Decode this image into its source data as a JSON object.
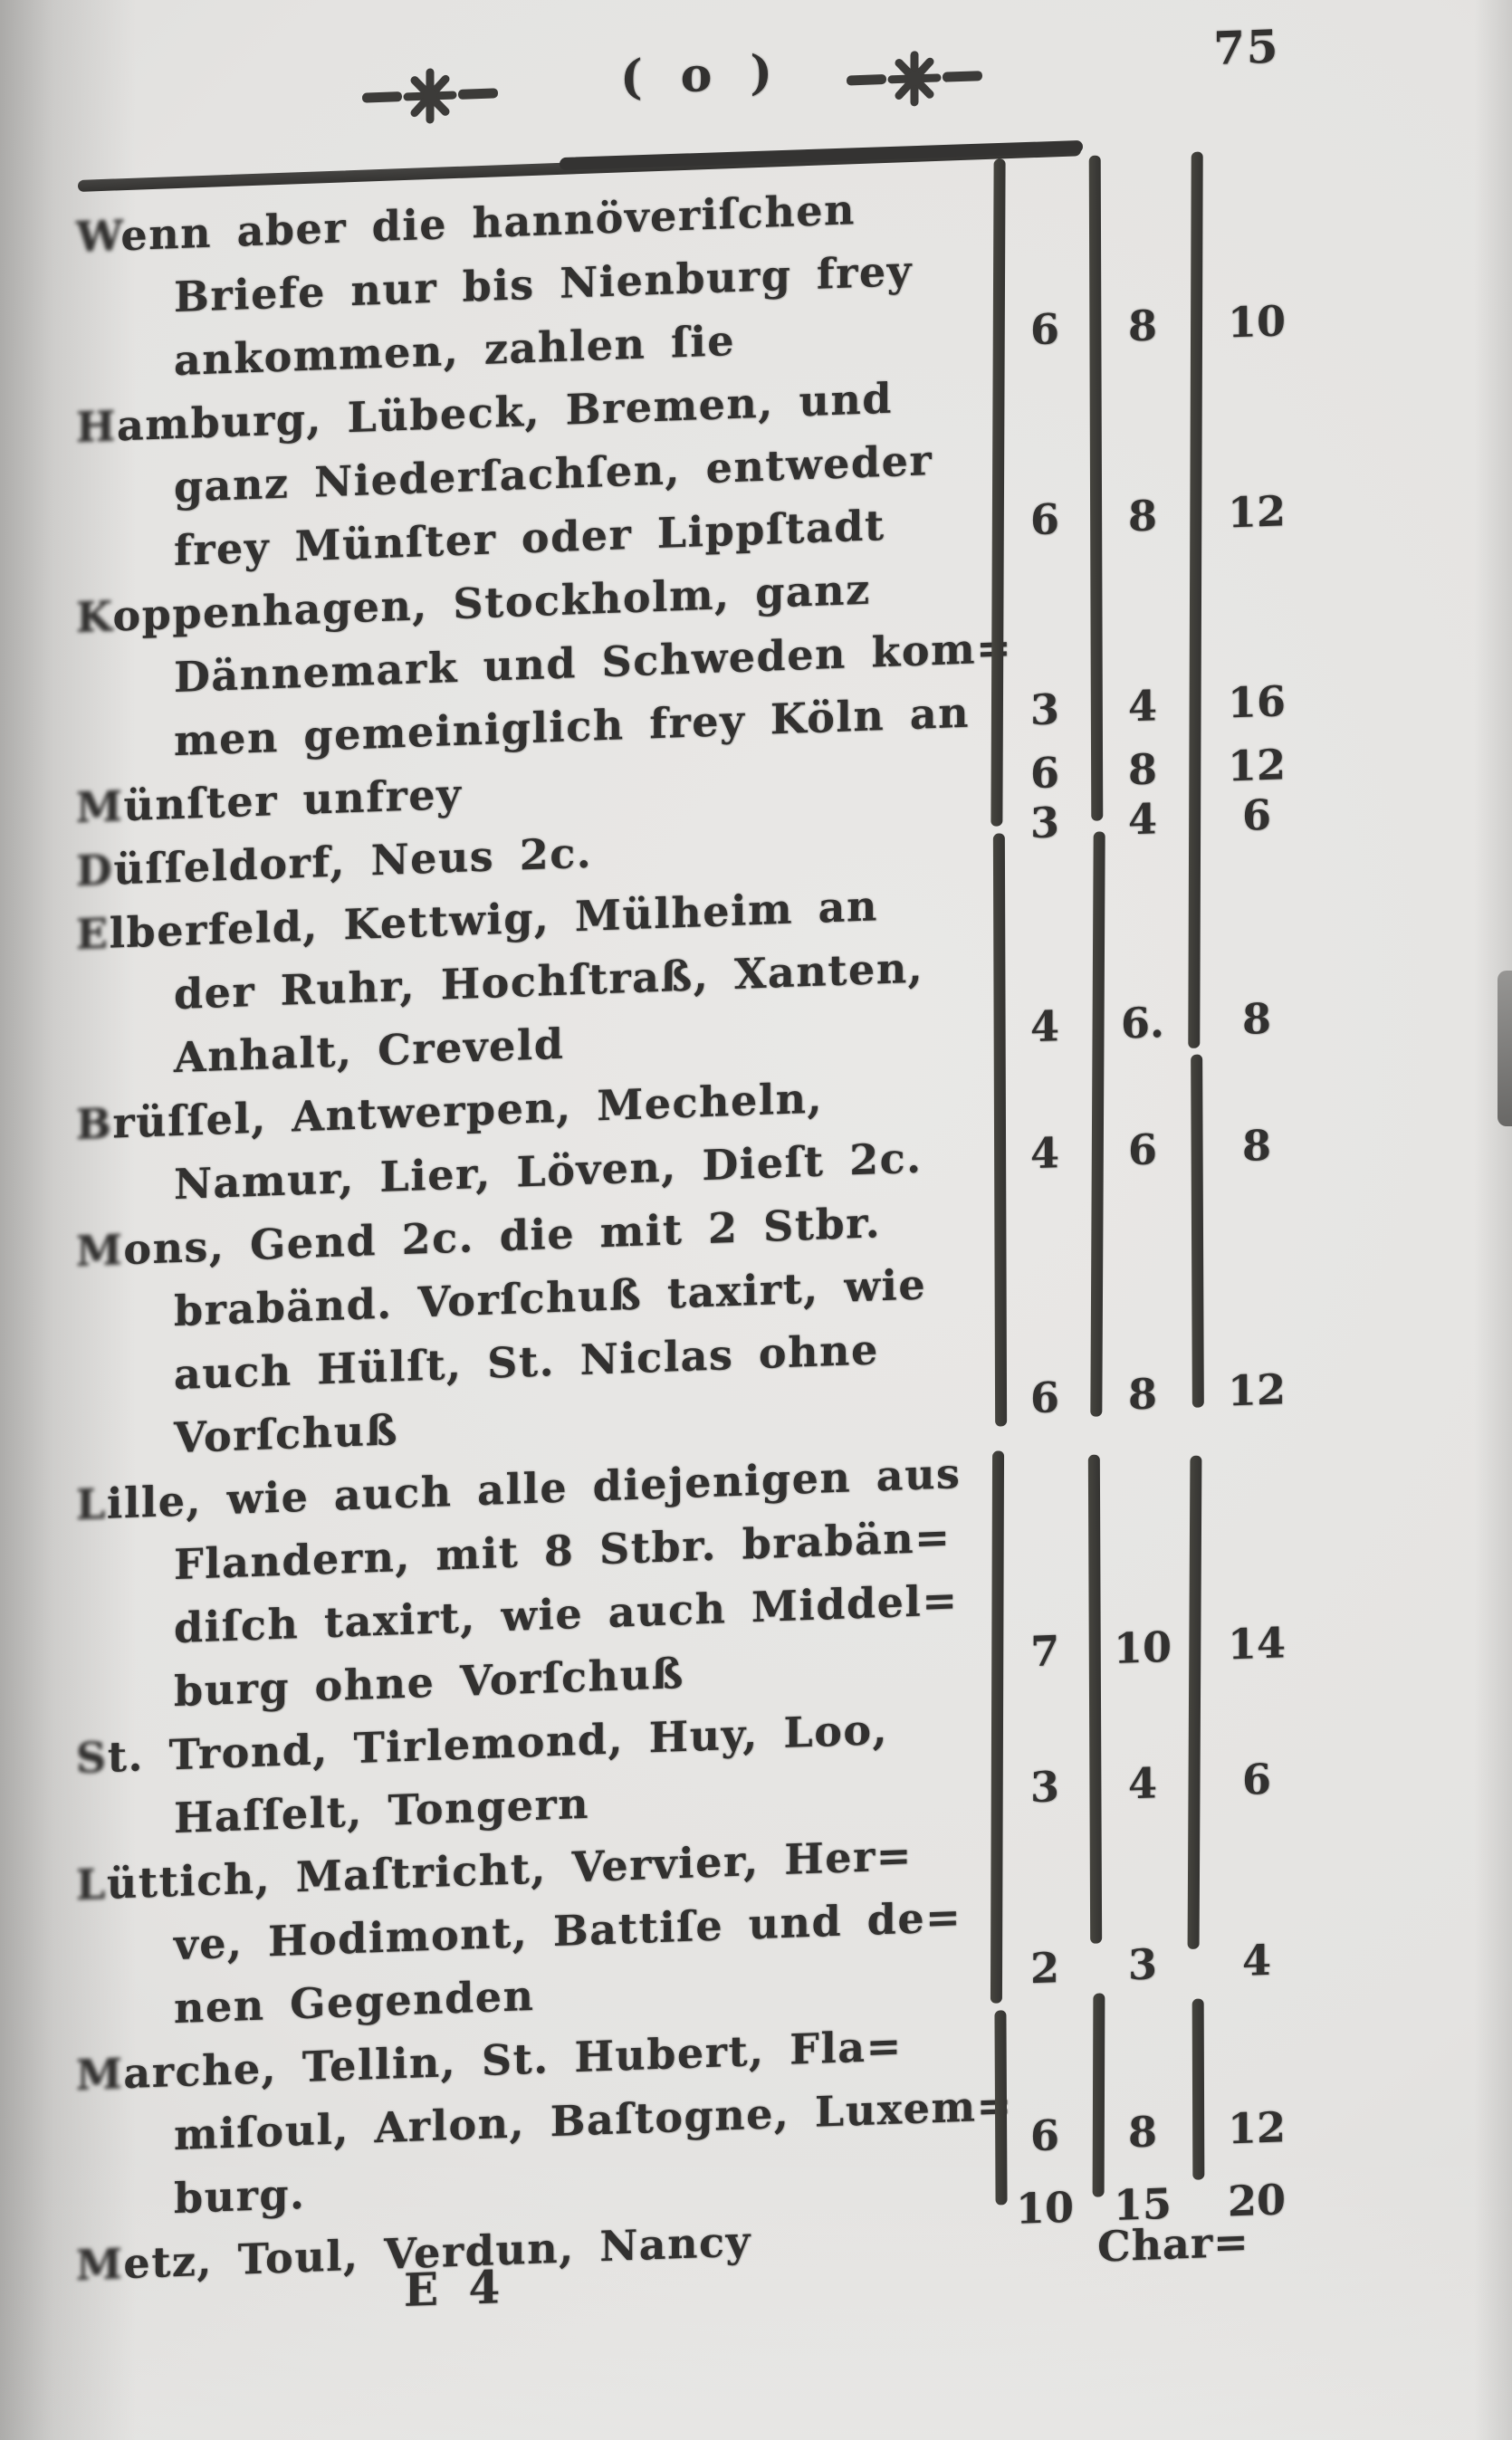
{
  "document_type": "scanned book page (18th-century German postal rate table)",
  "header": {
    "ornament_left": "printer-fleuron",
    "center_text": "( o )",
    "ornament_right": "printer-fleuron",
    "page_number": "75"
  },
  "table": {
    "rows": [
      {
        "lines": [
          "Wenn aber die hannöveriſchen",
          "Briefe nur bis Nienburg frey",
          "ankommen, zahlen ſie"
        ],
        "values": [
          "6",
          "8",
          "10"
        ],
        "value_line": 2,
        "value_offset": 0
      },
      {
        "lines": [
          "Hamburg, Lübeck, Bremen, und",
          "ganz Niederſachſen, entweder",
          "frey Münſter oder Lippſtadt"
        ],
        "values": [
          "6",
          "8",
          "12"
        ],
        "value_line": 2,
        "value_offset": 0
      },
      {
        "lines": [
          "Koppenhagen, Stockholm, ganz",
          "Dännemark und Schweden kom=",
          "men gemeiniglich frey Köln an"
        ],
        "values": [
          "3",
          "4",
          "16"
        ],
        "value_line": 2,
        "value_offset": 0
      },
      {
        "lines": [
          "Münſter unfrey"
        ],
        "values": [
          "6",
          "8",
          "12"
        ],
        "value_line": 0,
        "value_offset": 0
      },
      {
        "lines": [
          "Düſſeldorf, Neus 2c."
        ],
        "values": [
          "3",
          "4",
          "6"
        ],
        "value_line": 0,
        "value_offset": -15
      },
      {
        "lines": [
          "Elberfeld, Kettwig, Mülheim an",
          "der Ruhr, Hochſtraß, Xanten,",
          "Anhalt, Creveld"
        ],
        "values": [
          "4",
          "6.",
          "8"
        ],
        "value_line": 2,
        "value_offset": 0
      },
      {
        "lines": [
          "Brüſſel, Antwerpen, Mecheln,",
          "Namur, Lier, Löven, Dieſt 2c."
        ],
        "values": [
          "4",
          "6",
          "8"
        ],
        "value_line": 1,
        "value_offset": 0
      },
      {
        "lines": [
          "Mons, Gend 2c. die mit 2 Stbr.",
          "brabänd. Vorſchuß taxirt, wie",
          "auch Hülſt, St. Niclas ohne",
          "Vorſchuß"
        ],
        "values": [
          "6",
          "8",
          "12"
        ],
        "value_line": 3,
        "value_offset": -10
      },
      {
        "lines": [
          "Lille, wie auch alle diejenigen aus",
          "Flandern, mit 8 Stbr. brabän=",
          "diſch taxirt, wie auch Middel=",
          "burg ohne Vorſchuß"
        ],
        "values": [
          "7",
          "10",
          "14"
        ],
        "value_line": 3,
        "value_offset": -10
      },
      {
        "lines": [
          "St. Trond, Tirlemond, Huy, Loo,",
          "Haſſelt, Tongern"
        ],
        "values": [
          "3",
          "4",
          "6"
        ],
        "value_line": 1,
        "value_offset": 0
      },
      {
        "lines": [
          "Lüttich, Maſtricht, Vervier, Her=",
          "ve, Hodimont, Battiſe und de=",
          "nen Gegenden"
        ],
        "values": [
          "2",
          "3",
          "4"
        ],
        "value_line": 2,
        "value_offset": -10
      },
      {
        "lines": [
          "Marche, Tellin, St. Hubert, Fla=",
          "miſoul, Arlon, Baſtogne, Luxem=",
          "burg."
        ],
        "values": [
          "6",
          "8",
          "12"
        ],
        "value_line": 2,
        "value_offset": -35
      },
      {
        "lines": [
          "Metz, Toul, Verdun, Nancy"
        ],
        "values": [
          "10",
          "15",
          "20"
        ],
        "value_line": 0,
        "value_offset": -25
      }
    ]
  },
  "footer": {
    "signature": "E 4",
    "catchword": "Char="
  },
  "colors": {
    "paper": "#e6e5e3",
    "ink": "#323130",
    "rule": "#393837"
  }
}
